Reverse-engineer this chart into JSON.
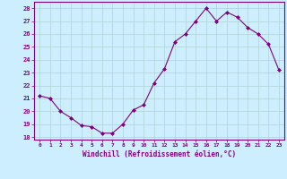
{
  "x": [
    0,
    1,
    2,
    3,
    4,
    5,
    6,
    7,
    8,
    9,
    10,
    11,
    12,
    13,
    14,
    15,
    16,
    17,
    18,
    19,
    20,
    21,
    22,
    23
  ],
  "y": [
    21.2,
    21.0,
    20.0,
    19.5,
    18.9,
    18.8,
    18.3,
    18.3,
    19.0,
    20.1,
    20.5,
    22.2,
    23.3,
    25.4,
    26.0,
    27.0,
    28.0,
    27.0,
    27.7,
    27.3,
    26.5,
    26.0,
    25.2,
    23.2
  ],
  "line_color": "#800080",
  "marker": "D",
  "marker_size": 2,
  "bg_color": "#cceeff",
  "grid_color": "#aaddcc",
  "xlabel": "Windchill (Refroidissement éolien,°C)",
  "ylabel_ticks": [
    18,
    19,
    20,
    21,
    22,
    23,
    24,
    25,
    26,
    27,
    28
  ],
  "ylim": [
    17.8,
    28.5
  ],
  "xlim": [
    -0.5,
    23.5
  ],
  "tick_color": "#800080",
  "label_color": "#800080",
  "axis_line_color": "#800080",
  "grid_line_color": "#b0d4d4"
}
